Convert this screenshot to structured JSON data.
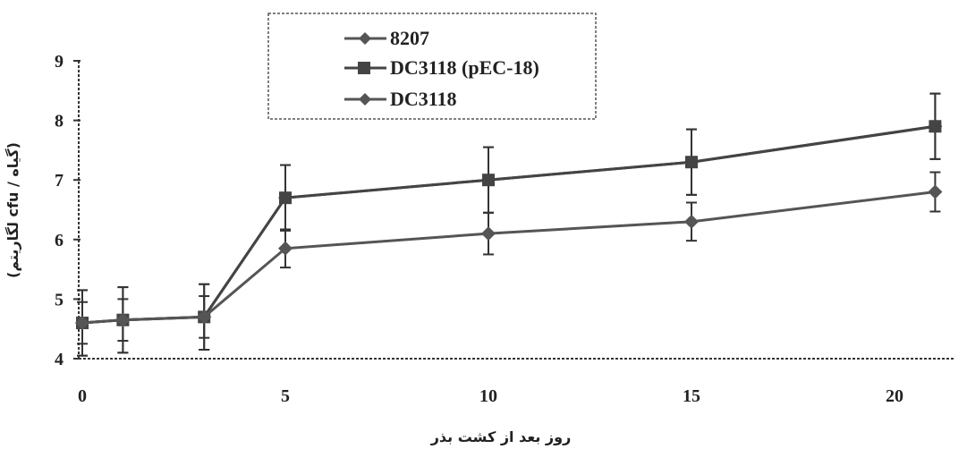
{
  "chart_data": {
    "type": "line",
    "xlabel": "روز بعد از کشت بذر",
    "ylabel": "(لگاریتم cfu / گیاه)",
    "x_ticks": [
      "0",
      "5",
      "10",
      "15",
      "20"
    ],
    "y_ticks": [
      "4",
      "5",
      "6",
      "7",
      "8",
      "9"
    ],
    "xlim": [
      0,
      22
    ],
    "ylim": [
      4,
      9
    ],
    "grid": false,
    "legend_position": "top-center",
    "series": [
      {
        "name": "8207",
        "marker": "diamond",
        "color": "#555555",
        "x": [
          0,
          1,
          3,
          5,
          10,
          15,
          21
        ],
        "y": [
          4.6,
          4.65,
          4.7,
          6.7,
          7.0,
          7.3,
          7.9
        ],
        "err": [
          0.55,
          0.55,
          0.55,
          0.55,
          0.55,
          0.55,
          0.55
        ]
      },
      {
        "name": "DC3118 (pEC-18)",
        "marker": "square",
        "color": "#444444",
        "x": [
          0,
          1,
          3,
          5,
          10,
          15,
          21
        ],
        "y": [
          4.6,
          4.65,
          4.7,
          6.7,
          7.0,
          7.3,
          7.9
        ],
        "err": [
          0.55,
          0.55,
          0.55,
          0.55,
          0.55,
          0.55,
          0.55
        ]
      },
      {
        "name": "DC3118",
        "marker": "diamond",
        "color": "#555555",
        "x": [
          0,
          1,
          3,
          5,
          10,
          15,
          21
        ],
        "y": [
          4.6,
          4.65,
          4.7,
          5.85,
          6.1,
          6.3,
          6.8
        ],
        "err": [
          0.35,
          0.35,
          0.35,
          0.32,
          0.35,
          0.32,
          0.33
        ]
      }
    ]
  }
}
